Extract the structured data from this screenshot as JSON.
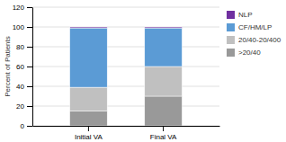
{
  "chart_data": {
    "type": "bar",
    "stacked": true,
    "categories": [
      "Initial VA",
      "Final VA"
    ],
    "series": [
      {
        "name": ">20/40",
        "color": "#999999",
        "values": [
          15,
          30
        ]
      },
      {
        "name": "20/40-20/400",
        "color": "#c0c0c0",
        "values": [
          24,
          30
        ]
      },
      {
        "name": "CF/HM/LP",
        "color": "#5b9bd5",
        "values": [
          60,
          39
        ]
      },
      {
        "name": "NLP",
        "color": "#7030a0",
        "values": [
          1,
          1
        ]
      }
    ],
    "ylabel": "Percent of Patients",
    "ylim": [
      0,
      120
    ],
    "yticks": [
      0,
      20,
      40,
      60,
      80,
      100,
      120
    ],
    "grid": true,
    "legend": "right"
  }
}
